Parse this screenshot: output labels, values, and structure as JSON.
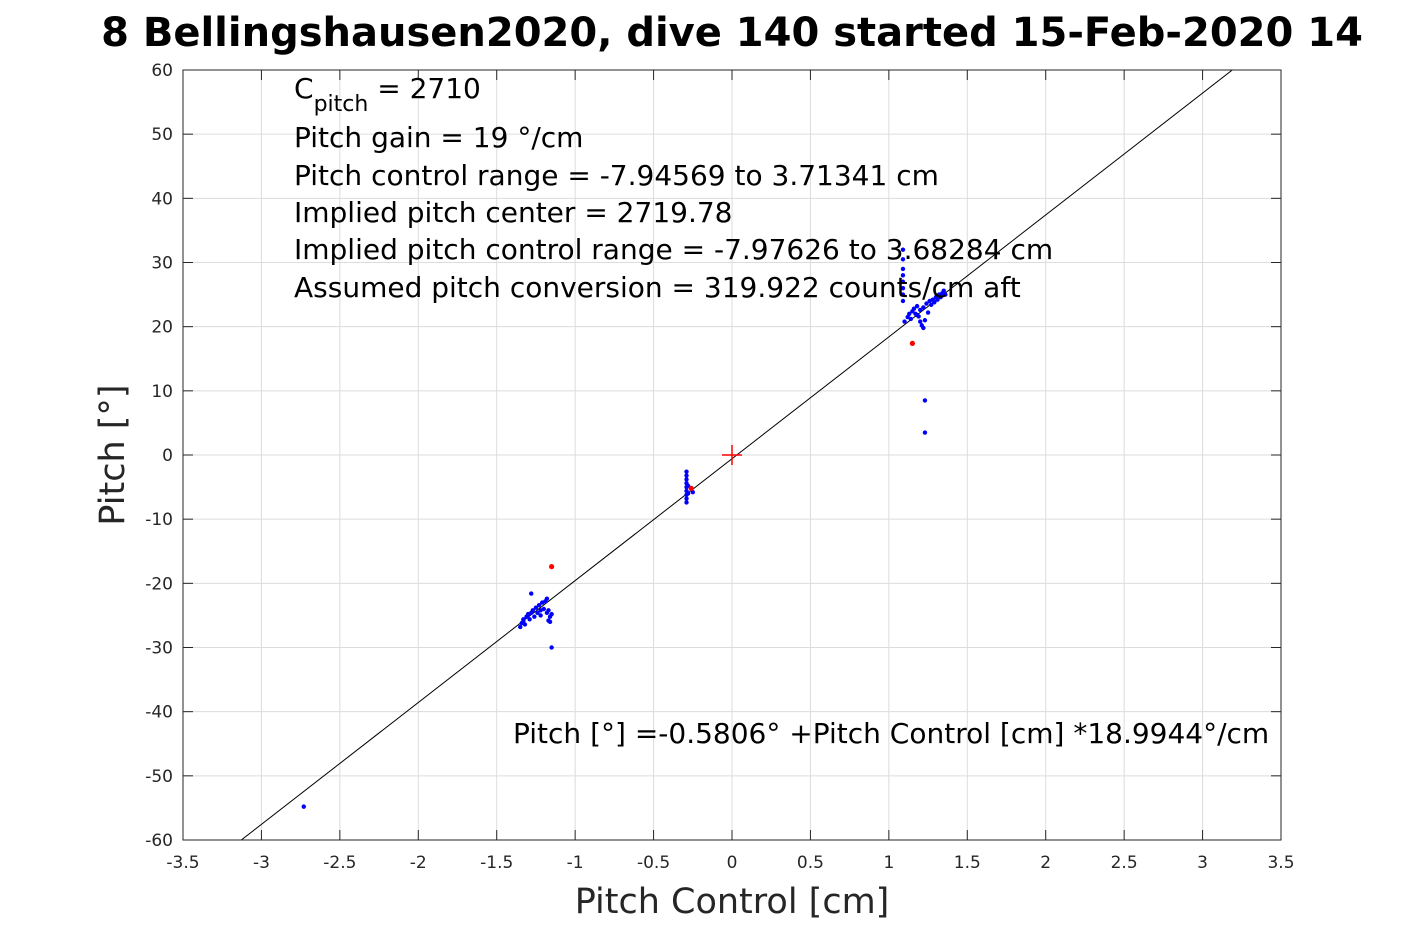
{
  "chart_data": {
    "type": "scatter",
    "title": "8 Bellingshausen2020, dive 140 started 15-Feb-2020 14",
    "xlabel": "Pitch Control [cm]",
    "ylabel": "Pitch [°]",
    "xlim": [
      -3.5,
      3.5
    ],
    "ylim": [
      -60,
      60
    ],
    "xticks": [
      -3.5,
      -3,
      -2.5,
      -2,
      -1.5,
      -1,
      -0.5,
      0,
      0.5,
      1,
      1.5,
      2,
      2.5,
      3,
      3.5
    ],
    "xtick_labels": [
      "-3.5",
      "-3",
      "-2.5",
      "-2",
      "-1.5",
      "-1",
      "-0.5",
      "0",
      "0.5",
      "1",
      "1.5",
      "2",
      "2.5",
      "3",
      "3.5"
    ],
    "yticks": [
      -60,
      -50,
      -40,
      -30,
      -20,
      -10,
      0,
      10,
      20,
      30,
      40,
      50,
      60
    ],
    "ytick_labels": [
      "-60",
      "-50",
      "-40",
      "-30",
      "-20",
      "-10",
      "0",
      "10",
      "20",
      "30",
      "40",
      "50",
      "60"
    ],
    "grid": true,
    "annotations": {
      "c_pitch_prefix": "C",
      "c_pitch_sub": "pitch",
      "c_pitch_value": " = 2710",
      "lines": [
        "Pitch gain = 19 °/cm",
        "Pitch control range = -7.94569 to 3.71341 cm",
        "Implied pitch center = 2719.78",
        "Implied pitch control range = -7.97626 to 3.68284 cm",
        "Assumed pitch conversion = 319.922 counts/cm aft"
      ],
      "fit_equation": "Pitch [°] =-0.5806° +Pitch Control [cm] *18.9944°/cm"
    },
    "fit_line": {
      "intercept": -0.5806,
      "slope": 18.9944
    },
    "center_marker": {
      "x": 0,
      "y": 0
    },
    "series": [
      {
        "color": "#0000ff",
        "points": [
          [
            -2.73,
            -54.8
          ],
          [
            -1.35,
            -26.8
          ],
          [
            -1.34,
            -26.2
          ],
          [
            -1.33,
            -25.6
          ],
          [
            -1.32,
            -26.4
          ],
          [
            -1.31,
            -25.2
          ],
          [
            -1.3,
            -24.8
          ],
          [
            -1.29,
            -25.6
          ],
          [
            -1.28,
            -24.6
          ],
          [
            -1.28,
            -21.6
          ],
          [
            -1.27,
            -24.2
          ],
          [
            -1.26,
            -25.2
          ],
          [
            -1.25,
            -23.8
          ],
          [
            -1.24,
            -24.6
          ],
          [
            -1.23,
            -23.4
          ],
          [
            -1.22,
            -24.2
          ],
          [
            -1.21,
            -23.0
          ],
          [
            -1.2,
            -24.0
          ],
          [
            -1.19,
            -22.8
          ],
          [
            -1.18,
            -24.6
          ],
          [
            -1.18,
            -22.4
          ],
          [
            -1.17,
            -24.2
          ],
          [
            -1.16,
            -25.2
          ],
          [
            -1.16,
            -26.0
          ],
          [
            -1.15,
            -24.8
          ],
          [
            -1.15,
            -30.0
          ],
          [
            -1.17,
            -25.8
          ],
          [
            -1.22,
            -25.0
          ],
          [
            -1.33,
            -25.9
          ],
          [
            -1.3,
            -25.0
          ],
          [
            -0.29,
            -2.6
          ],
          [
            -0.29,
            -3.2
          ],
          [
            -0.29,
            -3.8
          ],
          [
            -0.29,
            -4.4
          ],
          [
            -0.29,
            -5.0
          ],
          [
            -0.29,
            -5.6
          ],
          [
            -0.29,
            -6.2
          ],
          [
            -0.29,
            -6.8
          ],
          [
            -0.29,
            -7.4
          ],
          [
            -0.28,
            -6.0
          ],
          [
            -0.28,
            -4.8
          ],
          [
            -0.25,
            -5.8
          ],
          [
            1.09,
            32.0
          ],
          [
            1.09,
            30.5
          ],
          [
            1.09,
            29.0
          ],
          [
            1.09,
            28.0
          ],
          [
            1.09,
            27.0
          ],
          [
            1.09,
            26.0
          ],
          [
            1.09,
            25.0
          ],
          [
            1.09,
            24.0
          ],
          [
            1.1,
            20.8
          ],
          [
            1.12,
            21.5
          ],
          [
            1.13,
            22.0
          ],
          [
            1.14,
            21.2
          ],
          [
            1.15,
            22.4
          ],
          [
            1.16,
            22.8
          ],
          [
            1.17,
            22.0
          ],
          [
            1.18,
            23.2
          ],
          [
            1.19,
            21.6
          ],
          [
            1.2,
            22.6
          ],
          [
            1.21,
            20.2
          ],
          [
            1.22,
            23.0
          ],
          [
            1.22,
            19.8
          ],
          [
            1.23,
            21.0
          ],
          [
            1.24,
            23.6
          ],
          [
            1.25,
            22.2
          ],
          [
            1.26,
            24.0
          ],
          [
            1.27,
            23.4
          ],
          [
            1.28,
            24.2
          ],
          [
            1.29,
            23.8
          ],
          [
            1.3,
            24.6
          ],
          [
            1.31,
            24.2
          ],
          [
            1.32,
            25.0
          ],
          [
            1.33,
            24.6
          ],
          [
            1.34,
            25.2
          ],
          [
            1.35,
            25.6
          ],
          [
            1.36,
            25.0
          ],
          [
            1.23,
            8.5
          ],
          [
            1.23,
            3.5
          ],
          [
            1.2,
            20.8
          ],
          [
            1.18,
            21.8
          ]
        ]
      },
      {
        "color": "#ff0000",
        "points": [
          [
            -1.15,
            -17.4
          ],
          [
            -0.26,
            -5.2
          ],
          [
            1.15,
            17.4
          ]
        ]
      }
    ]
  }
}
